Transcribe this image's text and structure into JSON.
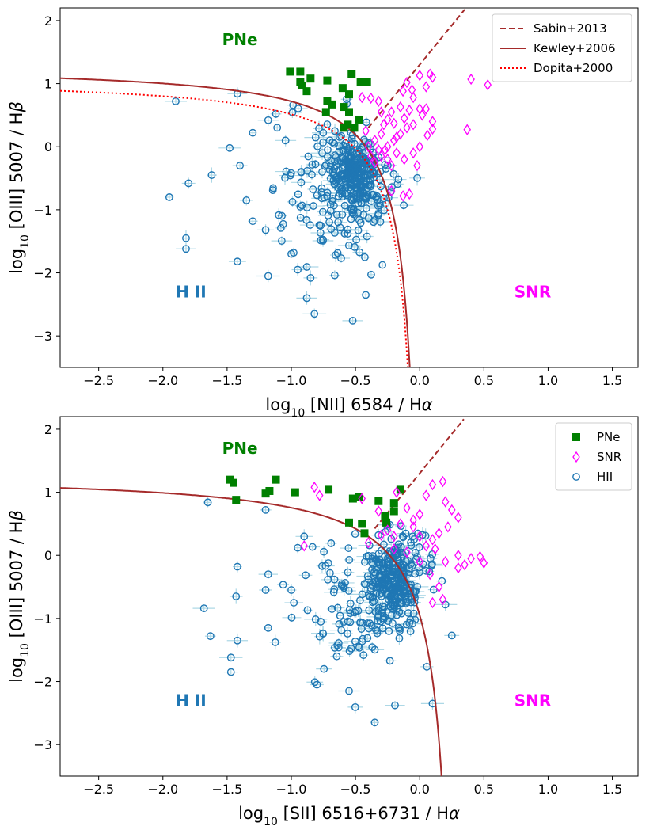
{
  "chart_data": [
    {
      "type": "scatter",
      "id": "nii",
      "xlabel_prefix": "log",
      "xlabel_sub": "10",
      "xlabel_rest": " [NII] 6584 / H",
      "xlabel_greek": "α",
      "ylabel_prefix": "log",
      "ylabel_sub": "10",
      "ylabel_rest": " [OIII] 5007 / H",
      "ylabel_greek": "β",
      "xlim": [
        -2.8,
        1.7
      ],
      "ylim": [
        -3.5,
        2.2
      ],
      "xticks": [
        "−2.5",
        "−2.0",
        "−1.5",
        "−1.0",
        "−0.5",
        "0.0",
        "0.5",
        "1.0",
        "1.5"
      ],
      "yticks": [
        "2",
        "1",
        "0",
        "−1",
        "−2",
        "−3"
      ],
      "regions": [
        {
          "text": "PNe",
          "color": "#008000",
          "x": -1.4,
          "y": 1.7
        },
        {
          "text": "H II",
          "color": "#1f77b4",
          "x": -1.78,
          "y": -2.3
        },
        {
          "text": "SNR",
          "color": "#ff00ff",
          "x": 0.88,
          "y": -2.3
        }
      ],
      "legend": {
        "location": "upper right",
        "entries": [
          {
            "label": "Sabin+2013",
            "style": "dashed",
            "color": "#a52a2a"
          },
          {
            "label": "Kewley+2006",
            "style": "solid",
            "color": "#a52a2a"
          },
          {
            "label": "Dopita+2000",
            "style": "dotted",
            "color": "#ff0000"
          }
        ]
      },
      "curves": [
        {
          "name": "Sabin+2013",
          "type": "line",
          "slope": 2.5,
          "intercept": 1.3,
          "x_range": [
            -0.4,
            0.35
          ]
        },
        {
          "name": "Kewley+2006",
          "type": "hyperbola",
          "a": 0.61,
          "b": 0.05,
          "c": 1.3,
          "x_range": [
            -2.8,
            -0.08
          ]
        },
        {
          "name": "Dopita+2000",
          "type": "hyperbola",
          "a": 0.61,
          "b": 0.04,
          "c": 1.1,
          "x_range": [
            -2.8,
            -0.03
          ]
        }
      ],
      "pne": [
        [
          -1.01,
          1.19
        ],
        [
          -0.93,
          1.19
        ],
        [
          -0.93,
          1.03
        ],
        [
          -0.85,
          1.08
        ],
        [
          -0.92,
          0.97
        ],
        [
          -0.88,
          0.88
        ],
        [
          -0.72,
          1.05
        ],
        [
          -0.53,
          1.15
        ],
        [
          -0.46,
          1.03
        ],
        [
          -0.41,
          1.03
        ],
        [
          -0.6,
          0.93
        ],
        [
          -0.72,
          0.73
        ],
        [
          -0.55,
          0.83
        ],
        [
          -0.59,
          0.63
        ],
        [
          -0.55,
          0.55
        ],
        [
          -0.68,
          0.67
        ],
        [
          -0.73,
          0.55
        ],
        [
          -0.47,
          0.43
        ],
        [
          -0.56,
          0.35
        ],
        [
          -0.59,
          0.3
        ],
        [
          -0.51,
          0.3
        ]
      ],
      "snr": [
        [
          -0.45,
          0.78
        ],
        [
          -0.38,
          0.77
        ],
        [
          -0.32,
          0.72
        ],
        [
          -0.3,
          0.55
        ],
        [
          -0.25,
          0.43
        ],
        [
          -0.2,
          0.37
        ],
        [
          -0.15,
          0.63
        ],
        [
          -0.13,
          0.88
        ],
        [
          -0.1,
          1.02
        ],
        [
          -0.08,
          0.58
        ],
        [
          -0.05,
          0.78
        ],
        [
          0.0,
          1.13
        ],
        [
          0.05,
          0.95
        ],
        [
          0.08,
          1.15
        ],
        [
          0.1,
          1.1
        ],
        [
          0.0,
          0.6
        ],
        [
          0.02,
          0.5
        ],
        [
          0.1,
          0.4
        ],
        [
          0.1,
          0.28
        ],
        [
          0.06,
          0.18
        ],
        [
          0.4,
          1.07
        ],
        [
          0.53,
          0.98
        ],
        [
          0.37,
          0.27
        ],
        [
          -0.1,
          0.3
        ],
        [
          -0.15,
          0.2
        ],
        [
          -0.2,
          0.1
        ],
        [
          -0.25,
          0.0
        ],
        [
          -0.18,
          -0.1
        ],
        [
          -0.12,
          -0.2
        ],
        [
          -0.05,
          -0.1
        ],
        [
          0.0,
          0.0
        ],
        [
          -0.3,
          0.2
        ],
        [
          -0.35,
          0.1
        ],
        [
          -0.27,
          -0.05
        ],
        [
          -0.22,
          -0.3
        ],
        [
          -0.35,
          -0.25
        ],
        [
          -0.3,
          -0.15
        ],
        [
          -0.4,
          0.0
        ],
        [
          -0.42,
          0.25
        ],
        [
          -0.28,
          0.35
        ],
        [
          -0.12,
          0.45
        ],
        [
          -0.05,
          0.35
        ],
        [
          -0.02,
          -0.3
        ],
        [
          -0.08,
          -0.75
        ],
        [
          -0.13,
          -0.78
        ],
        [
          -0.22,
          -0.7
        ],
        [
          -0.25,
          -0.2
        ],
        [
          -0.18,
          0.15
        ],
        [
          -0.32,
          -0.05
        ],
        [
          -0.38,
          -0.15
        ],
        [
          0.05,
          0.6
        ],
        [
          -0.06,
          0.9
        ],
        [
          -0.22,
          0.55
        ]
      ],
      "hii_counts": {
        "core": 260,
        "spread": 140
      },
      "hii_outliers": [
        [
          -1.9,
          0.72
        ],
        [
          -1.42,
          0.84
        ],
        [
          -1.95,
          -0.8
        ],
        [
          -1.8,
          -0.58
        ],
        [
          -1.82,
          -1.45
        ],
        [
          -1.82,
          -1.62
        ],
        [
          -1.62,
          -0.45
        ],
        [
          -1.48,
          -0.02
        ],
        [
          -1.4,
          -0.3
        ],
        [
          -1.35,
          -0.85
        ],
        [
          -1.3,
          -1.18
        ],
        [
          -1.3,
          0.22
        ],
        [
          -1.2,
          -1.32
        ],
        [
          -1.18,
          -2.05
        ],
        [
          -1.0,
          -1.7
        ],
        [
          -0.82,
          -2.65
        ],
        [
          -0.88,
          -2.4
        ],
        [
          -0.42,
          -2.35
        ],
        [
          -1.42,
          -1.82
        ],
        [
          -1.18,
          0.42
        ],
        [
          -1.12,
          0.52
        ],
        [
          -0.95,
          -1.95
        ],
        [
          -0.85,
          -2.08
        ]
      ]
    },
    {
      "type": "scatter",
      "id": "sii",
      "xlabel_prefix": "log",
      "xlabel_sub": "10",
      "xlabel_rest": " [SII] 6516+6731 / H",
      "xlabel_greek": "α",
      "ylabel_prefix": "log",
      "ylabel_sub": "10",
      "ylabel_rest": " [OIII] 5007 / H",
      "ylabel_greek": "β",
      "xlim": [
        -2.8,
        1.7
      ],
      "ylim": [
        -3.5,
        2.2
      ],
      "xticks": [
        "−2.5",
        "−2.0",
        "−1.5",
        "−1.0",
        "−0.5",
        "0.0",
        "0.5",
        "1.0",
        "1.5"
      ],
      "yticks": [
        "2",
        "1",
        "0",
        "−1",
        "−2",
        "−3"
      ],
      "regions": [
        {
          "text": "PNe",
          "color": "#008000",
          "x": -1.4,
          "y": 1.7
        },
        {
          "text": "H II",
          "color": "#1f77b4",
          "x": -1.78,
          "y": -2.3
        },
        {
          "text": "SNR",
          "color": "#ff00ff",
          "x": 0.88,
          "y": -2.3
        }
      ],
      "legend": {
        "location": "upper right",
        "entries": [
          {
            "label": "PNe",
            "marker": "square",
            "color": "#008000"
          },
          {
            "label": "SNR",
            "marker": "diamond",
            "color": "#ff00ff"
          },
          {
            "label": "HII",
            "marker": "circle",
            "color": "#1f77b4"
          }
        ]
      },
      "curves": [
        {
          "name": "Sabin+2013",
          "type": "line",
          "slope": 2.5,
          "intercept": 1.3,
          "x_range": [
            -0.35,
            0.38
          ]
        },
        {
          "name": "Kewley+2006",
          "type": "hyperbola",
          "a": 0.72,
          "b": 0.32,
          "c": 1.3,
          "x_range": [
            -2.8,
            0.17
          ]
        }
      ],
      "pne": [
        [
          -1.48,
          1.2
        ],
        [
          -1.45,
          1.15
        ],
        [
          -1.43,
          0.88
        ],
        [
          -1.2,
          0.98
        ],
        [
          -1.17,
          1.02
        ],
        [
          -1.12,
          1.2
        ],
        [
          -0.97,
          1.0
        ],
        [
          -0.71,
          1.04
        ],
        [
          -0.52,
          0.9
        ],
        [
          -0.47,
          0.92
        ],
        [
          -0.32,
          0.86
        ],
        [
          -0.2,
          0.83
        ],
        [
          -0.15,
          1.04
        ],
        [
          -0.2,
          0.7
        ],
        [
          -0.27,
          0.62
        ],
        [
          -0.26,
          0.52
        ],
        [
          -0.45,
          0.5
        ],
        [
          -0.43,
          0.35
        ],
        [
          -0.55,
          0.52
        ]
      ],
      "snr": [
        [
          -0.82,
          1.08
        ],
        [
          -0.78,
          0.95
        ],
        [
          -0.45,
          0.9
        ],
        [
          -0.32,
          0.7
        ],
        [
          -0.18,
          1.0
        ],
        [
          -0.1,
          0.75
        ],
        [
          -0.05,
          0.56
        ],
        [
          0.0,
          0.65
        ],
        [
          0.05,
          0.95
        ],
        [
          0.1,
          1.12
        ],
        [
          0.18,
          1.17
        ],
        [
          0.2,
          0.85
        ],
        [
          0.25,
          0.72
        ],
        [
          0.3,
          0.6
        ],
        [
          0.22,
          0.45
        ],
        [
          0.15,
          0.35
        ],
        [
          0.1,
          0.25
        ],
        [
          0.05,
          0.15
        ],
        [
          -0.05,
          0.45
        ],
        [
          -0.15,
          0.5
        ],
        [
          0.3,
          0.0
        ],
        [
          0.35,
          -0.15
        ],
        [
          0.4,
          -0.05
        ],
        [
          0.47,
          -0.02
        ],
        [
          0.3,
          -0.2
        ],
        [
          0.5,
          -0.12
        ],
        [
          -0.3,
          0.32
        ],
        [
          -0.2,
          0.1
        ],
        [
          -0.1,
          0.05
        ],
        [
          -0.2,
          0.3
        ],
        [
          0.0,
          0.3
        ],
        [
          0.08,
          -0.3
        ],
        [
          0.15,
          -0.5
        ],
        [
          0.1,
          -0.75
        ],
        [
          0.18,
          -0.7
        ],
        [
          -0.9,
          0.15
        ],
        [
          -0.4,
          0.2
        ],
        [
          -0.25,
          0.4
        ],
        [
          0.12,
          0.1
        ],
        [
          0.2,
          -0.1
        ],
        [
          0.0,
          -0.1
        ]
      ],
      "hii_counts": {
        "core": 260,
        "spread": 150
      },
      "hii_outliers": [
        [
          -1.65,
          0.84
        ],
        [
          -1.2,
          0.72
        ],
        [
          -1.68,
          -0.84
        ],
        [
          -1.63,
          -1.28
        ],
        [
          -1.42,
          -1.35
        ],
        [
          -1.43,
          -0.65
        ],
        [
          -1.42,
          -0.18
        ],
        [
          -1.47,
          -1.62
        ],
        [
          -1.47,
          -1.85
        ],
        [
          -1.2,
          -0.55
        ],
        [
          -1.18,
          -0.3
        ],
        [
          -1.18,
          -1.15
        ],
        [
          -0.8,
          -2.05
        ],
        [
          -0.55,
          -2.15
        ],
        [
          -0.35,
          -2.65
        ],
        [
          0.1,
          -2.35
        ],
        [
          -0.98,
          -0.75
        ],
        [
          -1.0,
          -0.55
        ],
        [
          -0.95,
          0.12
        ],
        [
          -0.9,
          0.3
        ],
        [
          0.25,
          -1.27
        ],
        [
          0.2,
          -0.78
        ]
      ]
    }
  ]
}
